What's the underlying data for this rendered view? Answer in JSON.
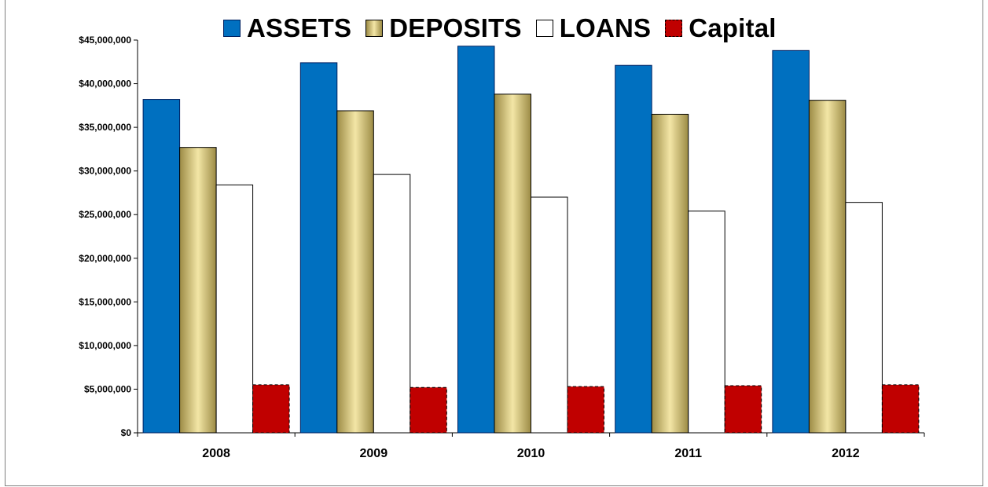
{
  "chart_data": {
    "type": "bar",
    "title": "",
    "xlabel": "",
    "ylabel": "",
    "categories": [
      "2008",
      "2009",
      "2010",
      "2011",
      "2012"
    ],
    "series": [
      {
        "name": "ASSETS",
        "values": [
          38200000,
          42400000,
          44300000,
          42100000,
          43800000
        ],
        "color": "#0070c0"
      },
      {
        "name": "DEPOSITS",
        "values": [
          32700000,
          36900000,
          38800000,
          36500000,
          38100000
        ],
        "color": "#d8c071"
      },
      {
        "name": "LOANS",
        "values": [
          28400000,
          29600000,
          27000000,
          25400000,
          26400000
        ],
        "color": "#ffffff"
      },
      {
        "name": "Capital",
        "values": [
          5500000,
          5200000,
          5300000,
          5400000,
          5500000
        ],
        "color": "#c00000"
      }
    ],
    "ylim": [
      0,
      45000000
    ],
    "yticks": [
      "$0",
      "$5,000,000",
      "$10,000,000",
      "$15,000,000",
      "$20,000,000",
      "$25,000,000",
      "$30,000,000",
      "$35,000,000",
      "$40,000,000",
      "$45,000,000"
    ],
    "grid": false,
    "legend_position": "top"
  }
}
